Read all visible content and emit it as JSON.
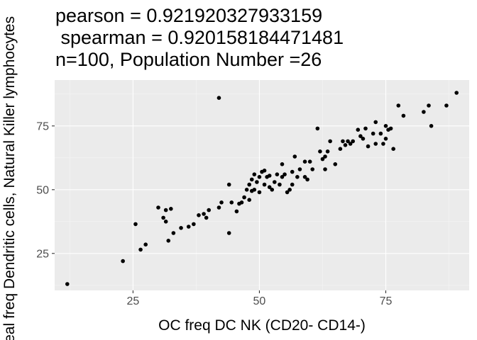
{
  "chart_data": {
    "type": "scatter",
    "title_lines": [
      "pearson = 0.921920327933159",
      " spearman = 0.920158184471481",
      "n=100, Population Number =26"
    ],
    "xlabel": "OC freq DC NK (CD20- CD14-)",
    "ylabel": "Real freq Dendritic cells, Natural Killer lymphocytes",
    "xlim": [
      9.5,
      91.5
    ],
    "ylim": [
      10.5,
      93
    ],
    "xticks": [
      25,
      50,
      75
    ],
    "yticks": [
      25,
      50,
      75
    ],
    "grid": true,
    "legend": "none",
    "colors": {
      "panel": "#ebebeb",
      "grid_major": "#ffffff",
      "grid_minor": "#f5f5f5",
      "point": "#000000",
      "tick": "#4d4d4d"
    },
    "points": [
      [
        12,
        13
      ],
      [
        23,
        22
      ],
      [
        25.5,
        36.5
      ],
      [
        26.5,
        26.5
      ],
      [
        27.5,
        28.5
      ],
      [
        30,
        43
      ],
      [
        31,
        39
      ],
      [
        31.5,
        37.5
      ],
      [
        31.5,
        42
      ],
      [
        32,
        30
      ],
      [
        32.5,
        42.5
      ],
      [
        33,
        33
      ],
      [
        34.5,
        35
      ],
      [
        36,
        35.5
      ],
      [
        37,
        36.5
      ],
      [
        38,
        40
      ],
      [
        39,
        40.5
      ],
      [
        39.5,
        39
      ],
      [
        40,
        42
      ],
      [
        42,
        86
      ],
      [
        42,
        43
      ],
      [
        42.5,
        45
      ],
      [
        44,
        52
      ],
      [
        44,
        33
      ],
      [
        44.5,
        45
      ],
      [
        45.5,
        41.5
      ],
      [
        46,
        44.5
      ],
      [
        46.5,
        45
      ],
      [
        47,
        47
      ],
      [
        47.5,
        50
      ],
      [
        48,
        52
      ],
      [
        48,
        46
      ],
      [
        48.5,
        49.5
      ],
      [
        48.5,
        54
      ],
      [
        49,
        50
      ],
      [
        49,
        56
      ],
      [
        49.5,
        53
      ],
      [
        50,
        55
      ],
      [
        50,
        49
      ],
      [
        50.5,
        57
      ],
      [
        51,
        52
      ],
      [
        51,
        57.5
      ],
      [
        51.5,
        55
      ],
      [
        52,
        51
      ],
      [
        52,
        55.5
      ],
      [
        52.5,
        50
      ],
      [
        53,
        53
      ],
      [
        53.5,
        56
      ],
      [
        54,
        52
      ],
      [
        54.5,
        60
      ],
      [
        54.5,
        55
      ],
      [
        55,
        56
      ],
      [
        55.5,
        49
      ],
      [
        56,
        50
      ],
      [
        56.5,
        57
      ],
      [
        56.5,
        52
      ],
      [
        57,
        63
      ],
      [
        57.5,
        55
      ],
      [
        58,
        58
      ],
      [
        59,
        55
      ],
      [
        59,
        61
      ],
      [
        59.5,
        54
      ],
      [
        60,
        61
      ],
      [
        60.5,
        58
      ],
      [
        61.5,
        74
      ],
      [
        62,
        65
      ],
      [
        62.5,
        62
      ],
      [
        63,
        63
      ],
      [
        63.5,
        65
      ],
      [
        63,
        58
      ],
      [
        64,
        69
      ],
      [
        65,
        60
      ],
      [
        66,
        66
      ],
      [
        66.5,
        69
      ],
      [
        67,
        67.5
      ],
      [
        67.5,
        69
      ],
      [
        68,
        68
      ],
      [
        68.5,
        69
      ],
      [
        69.5,
        73.5
      ],
      [
        70,
        71
      ],
      [
        70.5,
        70
      ],
      [
        71,
        74
      ],
      [
        71.5,
        67
      ],
      [
        72.5,
        72
      ],
      [
        73,
        76.5
      ],
      [
        74,
        72
      ],
      [
        74.5,
        68
      ],
      [
        75,
        70
      ],
      [
        75,
        75
      ],
      [
        75.5,
        73.5
      ],
      [
        76,
        74
      ],
      [
        76.5,
        66
      ],
      [
        77.5,
        83
      ],
      [
        78.5,
        79
      ],
      [
        82.5,
        80.5
      ],
      [
        83.5,
        83
      ],
      [
        84,
        75
      ],
      [
        87,
        83
      ],
      [
        89,
        88
      ],
      [
        73,
        68
      ]
    ]
  }
}
